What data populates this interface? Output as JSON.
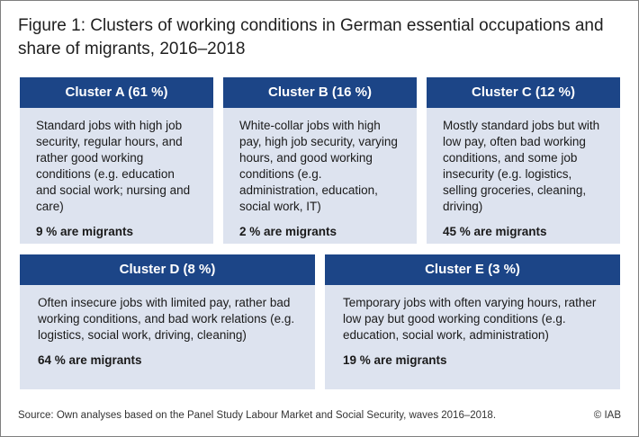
{
  "title": "Figure 1: Clusters of working conditions in German essential occupations and share of migrants, 2016–2018",
  "clusters": [
    {
      "header": "Cluster A (61 %)",
      "description": "Standard jobs with high job security, regular hours, and rather good working conditions (e.g. education and social work; nursing and care)",
      "migrants": "9 % are migrants"
    },
    {
      "header": "Cluster B (16 %)",
      "description": "White-collar jobs with high pay, high job security, varying hours, and good working conditions (e.g. administration, education, social work, IT)",
      "migrants": "2 % are migrants"
    },
    {
      "header": "Cluster C (12 %)",
      "description": "Mostly standard jobs but with low pay, often bad working conditions, and some job insecurity (e.g. logistics, selling groceries, cleaning, driving)",
      "migrants": "45 % are migrants"
    },
    {
      "header": "Cluster D (8 %)",
      "description": "Often insecure jobs with limited pay, rather bad working conditions, and bad work relations (e.g. logistics, social work, driving, cleaning)",
      "migrants": "64 % are migrants"
    },
    {
      "header": "Cluster E (3 %)",
      "description": "Temporary jobs with often varying hours, rather low pay but good working conditions (e.g. education, social work, administration)",
      "migrants": "19 % are migrants"
    }
  ],
  "footer": {
    "source": "Source: Own analyses based on the Panel Study Labour Market and Social Security, waves 2016–2018.",
    "copyright": "© IAB"
  },
  "colors": {
    "header_bg": "#1c4587",
    "card_bg": "#dde3ef"
  }
}
